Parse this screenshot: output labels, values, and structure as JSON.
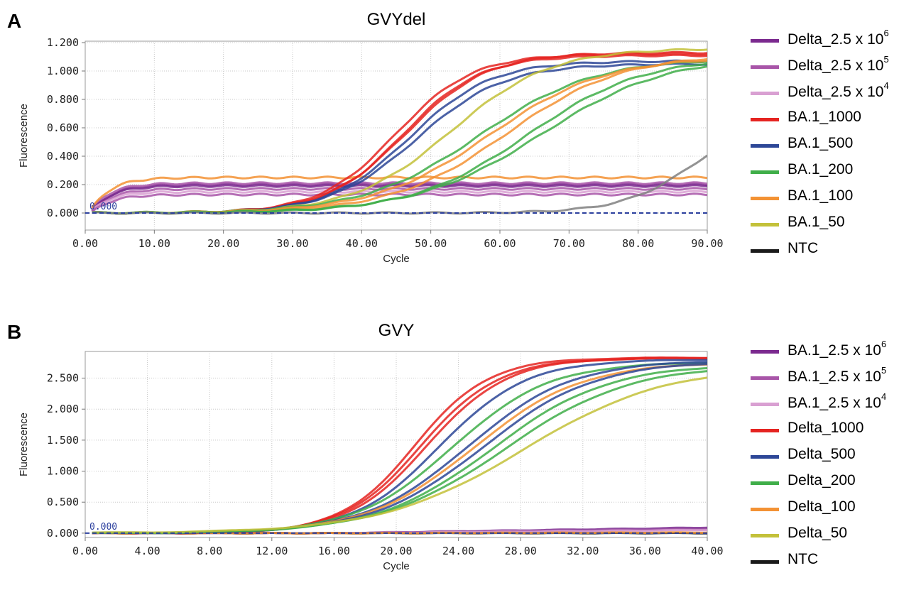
{
  "chart_data": [
    {
      "type": "line",
      "panel_label": "A",
      "title": "GVYdel",
      "xlabel": "Cycle",
      "ylabel": "Fluorescence",
      "xlim": [
        0,
        90
      ],
      "ylim": [
        -0.12,
        1.21
      ],
      "xticks": [
        "0.00",
        "10.00",
        "20.00",
        "30.00",
        "40.00",
        "50.00",
        "60.00",
        "70.00",
        "80.00",
        "90.00"
      ],
      "xtick_values": [
        0,
        10,
        20,
        30,
        40,
        50,
        60,
        70,
        80,
        90
      ],
      "yticks": [
        "0.000",
        "0.200",
        "0.400",
        "0.600",
        "0.800",
        "1.000",
        "1.200"
      ],
      "ytick_values": [
        0,
        0.2,
        0.4,
        0.6,
        0.8,
        1.0,
        1.2
      ],
      "threshold": {
        "value": 0,
        "label": "0.000",
        "color": "#2b3f9e"
      },
      "grid": true,
      "legend_position": "right",
      "legend": [
        {
          "name": "Delta_2.5 x 10",
          "sup": "6",
          "color": "#7b2a8f"
        },
        {
          "name": "Delta_2.5 x 10",
          "sup": "5",
          "color": "#a855a8"
        },
        {
          "name": "Delta_2.5 x 10",
          "sup": "4",
          "color": "#d9a0d2"
        },
        {
          "name": "BA.1_1000",
          "sup": "",
          "color": "#e52421"
        },
        {
          "name": "BA.1_500",
          "sup": "",
          "color": "#2d4797"
        },
        {
          "name": "BA.1_200",
          "sup": "",
          "color": "#3fae49"
        },
        {
          "name": "BA.1_100",
          "sup": "",
          "color": "#f39234"
        },
        {
          "name": "BA.1_50",
          "sup": "",
          "color": "#c3c13a"
        },
        {
          "name": "NTC",
          "sup": "",
          "color": "#1a1a1a"
        }
      ],
      "series": [
        {
          "color": "#7b2a8f",
          "kind": "flat",
          "plateau": 0.2,
          "start": -0.07,
          "k": 0.35
        },
        {
          "color": "#7b2a8f",
          "kind": "flat",
          "plateau": 0.19,
          "start": -0.05,
          "k": 0.35
        },
        {
          "color": "#a855a8",
          "kind": "flat",
          "plateau": 0.17,
          "start": -0.06,
          "k": 0.35
        },
        {
          "color": "#a855a8",
          "kind": "flat",
          "plateau": 0.21,
          "start": -0.04,
          "k": 0.35
        },
        {
          "color": "#d9a0d2",
          "kind": "flat",
          "plateau": 0.15,
          "start": -0.04,
          "k": 0.35
        },
        {
          "color": "#a855a8",
          "kind": "flat",
          "plateau": 0.13,
          "start": -0.05,
          "k": 0.35
        },
        {
          "color": "#f39234",
          "kind": "flat",
          "plateau": 0.25,
          "start": -0.06,
          "k": 0.35
        },
        {
          "color": "#e52421",
          "kind": "sig",
          "ct": 45.0,
          "plateau": 1.12,
          "k": 0.18
        },
        {
          "color": "#e52421",
          "kind": "sig",
          "ct": 46.0,
          "plateau": 1.11,
          "k": 0.18
        },
        {
          "color": "#e52421",
          "kind": "sig",
          "ct": 46.5,
          "plateau": 1.13,
          "k": 0.17
        },
        {
          "color": "#2d4797",
          "kind": "sig",
          "ct": 47.0,
          "plateau": 1.07,
          "k": 0.17
        },
        {
          "color": "#2d4797",
          "kind": "sig",
          "ct": 48.0,
          "plateau": 1.05,
          "k": 0.16
        },
        {
          "color": "#c3c13a",
          "kind": "sig",
          "ct": 53.0,
          "plateau": 1.16,
          "k": 0.14
        },
        {
          "color": "#3fae49",
          "kind": "sig",
          "ct": 57.0,
          "plateau": 1.09,
          "k": 0.12
        },
        {
          "color": "#f39234",
          "kind": "sig",
          "ct": 58.5,
          "plateau": 1.1,
          "k": 0.12
        },
        {
          "color": "#f39234",
          "kind": "sig",
          "ct": 61.0,
          "plateau": 1.12,
          "k": 0.12
        },
        {
          "color": "#3fae49",
          "kind": "sig",
          "ct": 64.0,
          "plateau": 1.1,
          "k": 0.12
        },
        {
          "color": "#3fae49",
          "kind": "sig",
          "ct": 66.0,
          "plateau": 1.11,
          "k": 0.11
        },
        {
          "color": "#808080",
          "kind": "sig",
          "ct": 89.0,
          "plateau": 0.75,
          "k": 0.18
        }
      ]
    },
    {
      "type": "line",
      "panel_label": "B",
      "title": "GVY",
      "xlabel": "Cycle",
      "ylabel": "Fluorescence",
      "xlim": [
        0,
        40
      ],
      "ylim": [
        -0.07,
        2.93
      ],
      "xticks": [
        "0.00",
        "4.00",
        "8.00",
        "12.00",
        "16.00",
        "20.00",
        "24.00",
        "28.00",
        "32.00",
        "36.00",
        "40.00"
      ],
      "xtick_values": [
        0,
        4,
        8,
        12,
        16,
        20,
        24,
        28,
        32,
        36,
        40
      ],
      "yticks": [
        "0.000",
        "0.500",
        "1.000",
        "1.500",
        "2.000",
        "2.500"
      ],
      "ytick_values": [
        0,
        0.5,
        1.0,
        1.5,
        2.0,
        2.5
      ],
      "threshold": {
        "value": 0,
        "label": "0.000",
        "color": "#2b3f9e"
      },
      "grid": true,
      "legend_position": "right",
      "legend": [
        {
          "name": "BA.1_2.5 x 10",
          "sup": "6",
          "color": "#7b2a8f"
        },
        {
          "name": "BA.1_2.5 x 10",
          "sup": "5",
          "color": "#a855a8"
        },
        {
          "name": "BA.1_2.5 x 10",
          "sup": "4",
          "color": "#d9a0d2"
        },
        {
          "name": "Delta_1000",
          "sup": "",
          "color": "#e52421"
        },
        {
          "name": "Delta_500",
          "sup": "",
          "color": "#2d4797"
        },
        {
          "name": "Delta_200",
          "sup": "",
          "color": "#3fae49"
        },
        {
          "name": "Delta_100",
          "sup": "",
          "color": "#f39234"
        },
        {
          "name": "Delta_50",
          "sup": "",
          "color": "#c3c13a"
        },
        {
          "name": "NTC",
          "sup": "",
          "color": "#1a1a1a"
        }
      ],
      "series": [
        {
          "color": "#7b2a8f",
          "kind": "drift",
          "end": 0.09
        },
        {
          "color": "#a855a8",
          "kind": "drift",
          "end": 0.06
        },
        {
          "color": "#d9a0d2",
          "kind": "drift",
          "end": 0.05
        },
        {
          "color": "#1a1a1a",
          "kind": "drift",
          "end": 0.0
        },
        {
          "color": "#f39234",
          "kind": "drift",
          "end": 0.01
        },
        {
          "color": "#e52421",
          "kind": "sig",
          "ct": 21.2,
          "plateau": 2.83,
          "k": 0.42
        },
        {
          "color": "#e52421",
          "kind": "sig",
          "ct": 21.6,
          "plateau": 2.82,
          "k": 0.4
        },
        {
          "color": "#e52421",
          "kind": "sig",
          "ct": 22.0,
          "plateau": 2.83,
          "k": 0.39
        },
        {
          "color": "#2d4797",
          "kind": "sig",
          "ct": 22.8,
          "plateau": 2.8,
          "k": 0.36
        },
        {
          "color": "#3fae49",
          "kind": "sig",
          "ct": 23.6,
          "plateau": 2.76,
          "k": 0.32
        },
        {
          "color": "#2d4797",
          "kind": "sig",
          "ct": 24.6,
          "plateau": 2.79,
          "k": 0.3
        },
        {
          "color": "#f39234",
          "kind": "sig",
          "ct": 25.0,
          "plateau": 2.76,
          "k": 0.29
        },
        {
          "color": "#2d4797",
          "kind": "sig",
          "ct": 25.6,
          "plateau": 2.78,
          "k": 0.28
        },
        {
          "color": "#3fae49",
          "kind": "sig",
          "ct": 26.2,
          "plateau": 2.73,
          "k": 0.27
        },
        {
          "color": "#3fae49",
          "kind": "sig",
          "ct": 27.0,
          "plateau": 2.72,
          "k": 0.25
        },
        {
          "color": "#c3c13a",
          "kind": "sig",
          "ct": 28.2,
          "plateau": 2.7,
          "k": 0.22
        }
      ]
    }
  ]
}
